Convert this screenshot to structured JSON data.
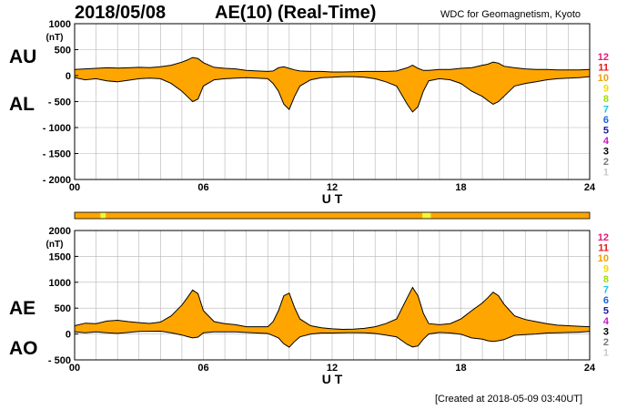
{
  "header": {
    "date": "2018/05/08",
    "title": "AE(10) (Real-Time)",
    "source": "WDC for Geomagnetism, Kyoto"
  },
  "footer": {
    "created": "[Created at 2018-05-09 03:40UT]"
  },
  "colors": {
    "fill": "#ffa500",
    "highlight": "#f5f53a",
    "grid": "#b4b4b4",
    "line": "#000000"
  },
  "chart_data": [
    {
      "type": "area",
      "panel": "top",
      "series_labels": [
        "AU",
        "AL"
      ],
      "ylabel": "(nT)",
      "ylim": [
        -2000,
        1000
      ],
      "yticks": [
        1000,
        500,
        0,
        -500,
        -1000,
        -1500,
        -2000
      ],
      "ytick_labels": [
        "1000",
        "500",
        "0",
        "- 500",
        "- 1000",
        "- 1500",
        "- 2000"
      ],
      "xlim": [
        0,
        24
      ],
      "xticks": [
        0,
        6,
        12,
        18,
        24
      ],
      "xtick_labels": [
        "00",
        "06",
        "12",
        "18",
        "24"
      ],
      "xlabel": "U T",
      "grid": true,
      "x_hours": [
        0,
        0.5,
        1,
        1.5,
        2,
        2.5,
        3,
        3.5,
        4,
        4.5,
        5,
        5.25,
        5.5,
        5.75,
        6,
        6.5,
        7,
        7.5,
        8,
        8.5,
        9,
        9.25,
        9.5,
        9.75,
        10,
        10.25,
        10.5,
        11,
        11.5,
        12,
        12.5,
        13,
        13.5,
        14,
        14.5,
        15,
        15.5,
        15.75,
        16,
        16.25,
        16.5,
        17,
        17.5,
        18,
        18.5,
        19,
        19.25,
        19.5,
        19.75,
        20,
        20.5,
        21,
        21.5,
        22,
        22.5,
        23,
        23.5,
        24
      ],
      "series": [
        {
          "name": "AU",
          "values": [
            120,
            130,
            140,
            150,
            145,
            150,
            160,
            155,
            170,
            200,
            260,
            300,
            350,
            330,
            250,
            160,
            140,
            130,
            100,
            90,
            80,
            90,
            150,
            170,
            140,
            110,
            90,
            80,
            80,
            70,
            70,
            75,
            80,
            80,
            80,
            90,
            150,
            200,
            140,
            100,
            100,
            120,
            120,
            140,
            150,
            200,
            220,
            260,
            240,
            180,
            150,
            130,
            120,
            120,
            110,
            110,
            110,
            120
          ]
        },
        {
          "name": "AL",
          "values": [
            -40,
            -80,
            -60,
            -100,
            -120,
            -90,
            -60,
            -50,
            -60,
            -150,
            -300,
            -400,
            -500,
            -450,
            -200,
            -80,
            -60,
            -50,
            -40,
            -50,
            -60,
            -150,
            -300,
            -550,
            -650,
            -400,
            -200,
            -80,
            -40,
            -30,
            -20,
            -20,
            -30,
            -60,
            -120,
            -200,
            -550,
            -700,
            -600,
            -300,
            -100,
            -60,
            -80,
            -150,
            -300,
            -400,
            -480,
            -550,
            -500,
            -400,
            -200,
            -150,
            -120,
            -80,
            -60,
            -50,
            -40,
            -20
          ]
        }
      ],
      "quality_scale": {
        "labels": [
          "12",
          "11",
          "10",
          "9",
          "8",
          "7",
          "6",
          "5",
          "4",
          "3",
          "2",
          "1"
        ],
        "colors": [
          "#e6197a",
          "#e61919",
          "#f0a000",
          "#f0dc00",
          "#a0dc00",
          "#19c8dc",
          "#1964dc",
          "#1919a0",
          "#c819c8",
          "#000000",
          "#787878",
          "#c8c8c8"
        ]
      }
    },
    {
      "type": "area",
      "panel": "bottom",
      "series_labels": [
        "AE",
        "AO"
      ],
      "ylabel": "(nT)",
      "ylim": [
        -500,
        2000
      ],
      "yticks": [
        2000,
        1500,
        1000,
        500,
        0,
        -500
      ],
      "ytick_labels": [
        "2000",
        "1500",
        "1000",
        "500",
        "0",
        "- 500"
      ],
      "xlim": [
        0,
        24
      ],
      "xticks": [
        0,
        6,
        12,
        18,
        24
      ],
      "xtick_labels": [
        "00",
        "06",
        "12",
        "18",
        "24"
      ],
      "xlabel": "U T",
      "grid": true,
      "x_hours": [
        0,
        0.5,
        1,
        1.5,
        2,
        2.5,
        3,
        3.5,
        4,
        4.5,
        5,
        5.25,
        5.5,
        5.75,
        6,
        6.5,
        7,
        7.5,
        8,
        8.5,
        9,
        9.25,
        9.5,
        9.75,
        10,
        10.25,
        10.5,
        11,
        11.5,
        12,
        12.5,
        13,
        13.5,
        14,
        14.5,
        15,
        15.5,
        15.75,
        16,
        16.25,
        16.5,
        17,
        17.5,
        18,
        18.5,
        19,
        19.25,
        19.5,
        19.75,
        20,
        20.5,
        21,
        21.5,
        22,
        22.5,
        23,
        23.5,
        24
      ],
      "series": [
        {
          "name": "AE",
          "values": [
            160,
            210,
            200,
            250,
            265,
            240,
            220,
            205,
            230,
            350,
            560,
            700,
            850,
            780,
            450,
            240,
            200,
            180,
            140,
            140,
            140,
            240,
            450,
            740,
            790,
            510,
            290,
            160,
            120,
            100,
            90,
            95,
            110,
            140,
            200,
            290,
            700,
            900,
            740,
            400,
            200,
            180,
            200,
            290,
            450,
            600,
            700,
            810,
            740,
            580,
            350,
            280,
            240,
            200,
            170,
            160,
            150,
            140
          ]
        },
        {
          "name": "AO",
          "values": [
            40,
            25,
            40,
            25,
            12,
            30,
            50,
            52,
            55,
            25,
            -20,
            -50,
            -75,
            -60,
            25,
            40,
            40,
            40,
            30,
            20,
            10,
            -30,
            -75,
            -190,
            -255,
            -145,
            -55,
            0,
            20,
            20,
            25,
            27,
            25,
            10,
            -20,
            -55,
            -200,
            -250,
            -230,
            -100,
            0,
            30,
            20,
            -5,
            -75,
            -100,
            -130,
            -145,
            -130,
            -110,
            -25,
            -10,
            0,
            20,
            25,
            30,
            35,
            50
          ]
        }
      ],
      "quality_scale": {
        "labels": [
          "12",
          "11",
          "10",
          "9",
          "8",
          "7",
          "6",
          "5",
          "4",
          "3",
          "2",
          "1"
        ],
        "colors": [
          "#e6197a",
          "#e61919",
          "#f0a000",
          "#f0dc00",
          "#a0dc00",
          "#19c8dc",
          "#1964dc",
          "#1919a0",
          "#c819c8",
          "#000000",
          "#787878",
          "#c8c8c8"
        ]
      }
    }
  ],
  "data_quality_bar": {
    "highlighted_hours": [
      [
        1.2,
        1.45
      ],
      [
        16.2,
        16.6
      ]
    ]
  }
}
